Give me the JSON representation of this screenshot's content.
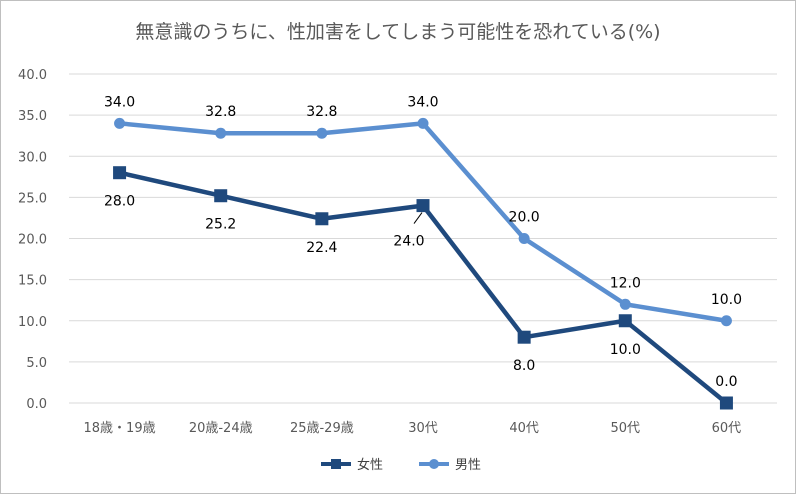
{
  "chart_data": {
    "type": "line",
    "title": "無意識のうちに、性加害をしてしまう可能性を恐れている(%)",
    "categories": [
      "18歳・19歳",
      "20歳-24歳",
      "25歳-29歳",
      "30代",
      "40代",
      "50代",
      "60代"
    ],
    "series": [
      {
        "name": "女性",
        "values": [
          28.0,
          25.2,
          22.4,
          24.0,
          8.0,
          10.0,
          0.0
        ],
        "labels": [
          "28.0",
          "25.2",
          "22.4",
          "24.0",
          "8.0",
          "10.0",
          "0.0"
        ],
        "color": "#1f497d",
        "marker": "square",
        "label_position": [
          "below",
          "below",
          "below",
          "below-left",
          "below",
          "below",
          "above"
        ]
      },
      {
        "name": "男性",
        "values": [
          34.0,
          32.8,
          32.8,
          34.0,
          20.0,
          12.0,
          10.0
        ],
        "labels": [
          "34.0",
          "32.8",
          "32.8",
          "34.0",
          "20.0",
          "12.0",
          "10.0"
        ],
        "color": "#5b8fd0",
        "marker": "circle",
        "label_position": [
          "above",
          "above",
          "above",
          "above",
          "above",
          "above",
          "above"
        ]
      }
    ],
    "ylim": [
      0,
      40
    ],
    "yticks": [
      "0.0",
      "5.0",
      "10.0",
      "15.0",
      "20.0",
      "25.0",
      "30.0",
      "35.0",
      "40.0"
    ],
    "ytick_values": [
      0,
      5,
      10,
      15,
      20,
      25,
      30,
      35,
      40
    ],
    "grid": true,
    "legend_position": "bottom"
  }
}
